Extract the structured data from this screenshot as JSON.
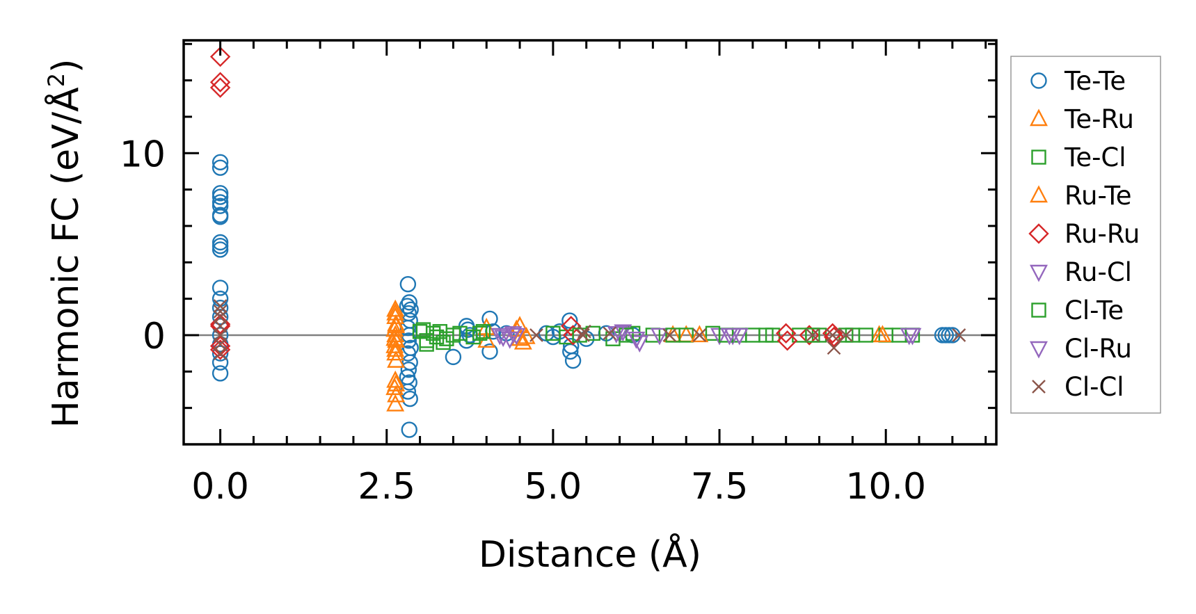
{
  "chart_data": {
    "type": "scatter",
    "title": "",
    "xlabel": "Distance (Å)",
    "ylabel_main": "Harmonic FC (eV/Å",
    "ylabel_sup": "2",
    "ylabel_close": ")",
    "xlim": [
      -0.55,
      11.66
    ],
    "ylim": [
      -6.0,
      16.2
    ],
    "xticks": [
      0.0,
      2.5,
      5.0,
      7.5,
      10.0
    ],
    "xtick_labels": [
      "0.0",
      "2.5",
      "5.0",
      "7.5",
      "10.0"
    ],
    "yticks": [
      0,
      10
    ],
    "ytick_labels": [
      "0",
      "10"
    ],
    "reference_line_y": 0,
    "legend_position": "outside-right",
    "series": [
      {
        "name": "Te-Te",
        "color": "#1f77b4",
        "marker": "circle",
        "x": [
          0,
          0,
          0,
          0,
          0,
          0,
          0,
          0,
          0,
          0,
          0,
          0,
          0,
          0,
          0,
          0,
          0,
          0,
          0,
          0,
          0,
          2.82,
          2.84,
          2.81,
          2.86,
          2.83,
          2.85,
          2.82,
          2.84,
          2.83,
          2.86,
          2.82,
          2.85,
          2.83,
          2.81,
          2.84,
          2.82,
          2.85,
          2.84,
          3.5,
          3.7,
          3.72,
          3.75,
          3.7,
          4.05,
          4.05,
          4.1,
          4.3,
          4.9,
          5.0,
          5.25,
          5.27,
          5.26,
          5.3,
          5.1,
          5.5,
          5.8,
          6.2,
          10.85,
          10.9,
          10.95,
          11.0
        ],
        "y": [
          9.5,
          9.2,
          7.8,
          7.6,
          7.3,
          7.1,
          6.6,
          6.5,
          5.1,
          4.9,
          4.7,
          2.6,
          2.0,
          1.5,
          1.0,
          0.5,
          0,
          -0.5,
          -1.0,
          -1.5,
          -2.1,
          2.8,
          1.8,
          1.6,
          1.4,
          1.2,
          0.8,
          0.4,
          0,
          -0.3,
          -0.7,
          -1.0,
          -1.5,
          -1.9,
          -2.3,
          -2.6,
          -3.1,
          -3.5,
          -5.2,
          -1.2,
          0.5,
          0.3,
          0,
          -0.3,
          0.9,
          -0.9,
          0.2,
          0.1,
          0.1,
          -0.1,
          0.8,
          -0.6,
          -0.9,
          -1.4,
          0.2,
          -0.2,
          0.1,
          0,
          0,
          0,
          0,
          0
        ]
      },
      {
        "name": "Te-Ru",
        "color": "#ff7f0e",
        "marker": "triangle-up",
        "x": [
          2.63,
          2.63,
          2.64,
          2.62,
          2.63,
          2.64,
          2.62,
          2.63,
          2.64,
          2.63,
          2.62,
          2.64,
          2.63,
          4.0,
          4.0,
          4.5,
          4.55,
          4.6,
          6.8,
          7.0,
          9.9
        ],
        "y": [
          1.4,
          1.0,
          0.6,
          0.3,
          0,
          -0.3,
          -0.6,
          -1.0,
          -1.4,
          -2.5,
          -2.9,
          -3.3,
          -3.8,
          0.4,
          -0.3,
          0.5,
          -0.4,
          -0.1,
          0,
          0,
          0
        ]
      },
      {
        "name": "Te-Cl",
        "color": "#2ca02c",
        "marker": "square",
        "x": [
          3.05,
          3.1,
          3.2,
          3.3,
          3.4,
          3.1,
          3.35,
          3.6,
          3.8,
          3.95,
          5.0,
          5.2,
          5.6,
          5.9,
          6.2,
          6.5,
          7.0,
          7.4,
          7.8,
          8.0,
          8.3,
          8.7,
          9.0,
          9.4,
          9.7,
          10.0,
          10.4
        ],
        "y": [
          0.3,
          -0.3,
          0.1,
          0.2,
          -0.2,
          -0.5,
          -0.4,
          0.1,
          -0.1,
          0.2,
          0.1,
          -0.1,
          0.1,
          -0.2,
          0.1,
          0,
          0,
          0.1,
          0,
          0,
          0,
          0,
          0,
          0,
          0,
          0,
          0
        ]
      },
      {
        "name": "Ru-Te",
        "color": "#ff7f0e",
        "marker": "triangle-up",
        "x": [
          2.63,
          2.64,
          2.62,
          2.63,
          2.64,
          4.45,
          4.5,
          7.2,
          9.95
        ],
        "y": [
          1.2,
          0.5,
          -0.2,
          -0.8,
          -2.7,
          0.3,
          -0.2,
          0,
          0
        ]
      },
      {
        "name": "Ru-Ru",
        "color": "#d62728",
        "marker": "diamond",
        "x": [
          0,
          0,
          0,
          0,
          0,
          0,
          0,
          5.27,
          5.3,
          8.5,
          8.52,
          8.85,
          9.2,
          9.22
        ],
        "y": [
          15.3,
          13.9,
          13.6,
          0.6,
          0.5,
          -0.6,
          -0.8,
          0.5,
          0,
          0.1,
          -0.3,
          0,
          0.1,
          -0.1
        ]
      },
      {
        "name": "Ru-Cl",
        "color": "#9467bd",
        "marker": "triangle-down",
        "x": [
          4.2,
          4.35,
          4.4,
          6.0,
          6.05,
          6.3,
          6.6,
          7.5,
          7.7,
          7.8,
          10.4
        ],
        "y": [
          0,
          -0.2,
          0.1,
          0.1,
          0.2,
          -0.4,
          0,
          0,
          0,
          0,
          0
        ]
      },
      {
        "name": "Cl-Te",
        "color": "#2ca02c",
        "marker": "square",
        "x": [
          3.0,
          3.25,
          3.5,
          3.9,
          5.4,
          6.1,
          6.8,
          7.6,
          8.2,
          8.9,
          9.5,
          10.2
        ],
        "y": [
          0.2,
          -0.1,
          0,
          0.1,
          0,
          0,
          0,
          0,
          0,
          0,
          0,
          0
        ]
      },
      {
        "name": "Cl-Ru",
        "color": "#9467bd",
        "marker": "triangle-down",
        "x": [
          4.25,
          4.45,
          5.95,
          6.25,
          7.65,
          10.35
        ],
        "y": [
          -0.1,
          0,
          0.1,
          -0.2,
          0,
          0
        ]
      },
      {
        "name": "Cl-Cl",
        "color": "#8c564b",
        "marker": "x",
        "x": [
          0,
          0,
          0,
          0,
          0,
          0,
          0,
          4.75,
          5.45,
          5.47,
          5.85,
          6.75,
          7.2,
          8.9,
          9.2,
          9.22,
          9.4,
          11.1
        ],
        "y": [
          1.6,
          1.3,
          1.0,
          0.5,
          0,
          -0.5,
          -1.0,
          0,
          0,
          0.2,
          0.1,
          0,
          0,
          0,
          0,
          -0.7,
          0,
          0
        ]
      }
    ]
  }
}
